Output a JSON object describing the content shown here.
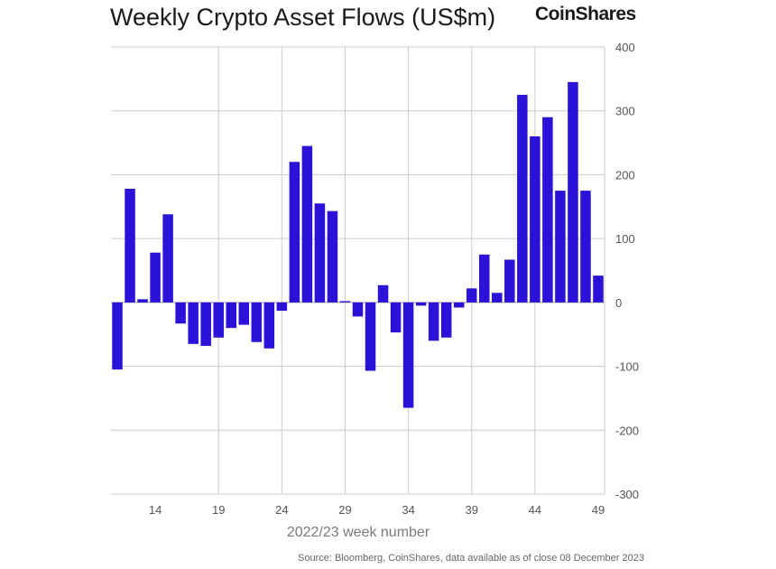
{
  "header": {
    "title": "Weekly Crypto Asset Flows (US$m)",
    "brand": "CoinShares"
  },
  "footer": {
    "source": "Source: Bloomberg, CoinShares, data available as of close 08 December 2023"
  },
  "colors": {
    "bar": "#2a12d8",
    "grid": "#cccccc",
    "zero_line": "#999999",
    "tick_text": "#555555"
  },
  "chart_data": {
    "type": "bar",
    "title": "Weekly Crypto Asset Flows (US$m)",
    "xlabel": "2022/23 week number",
    "ylabel": "US$m",
    "ylim": [
      -300,
      400
    ],
    "yticks": [
      400,
      300,
      200,
      100,
      0,
      -100,
      -200,
      -300
    ],
    "xtick_labels": [
      14,
      19,
      24,
      29,
      34,
      39,
      44,
      49
    ],
    "categories": [
      11,
      12,
      13,
      14,
      15,
      16,
      17,
      18,
      19,
      20,
      21,
      22,
      23,
      24,
      25,
      26,
      27,
      28,
      29,
      30,
      31,
      32,
      33,
      34,
      35,
      36,
      37,
      38,
      39,
      40,
      41,
      42,
      43,
      44,
      45,
      46,
      47,
      48,
      49
    ],
    "values": [
      -105,
      178,
      5,
      78,
      138,
      -33,
      -65,
      -68,
      -55,
      -40,
      -35,
      -62,
      -72,
      -13,
      220,
      245,
      155,
      143,
      2,
      -22,
      -107,
      27,
      -47,
      -165,
      -5,
      -60,
      -55,
      -8,
      22,
      75,
      15,
      67,
      325,
      260,
      290,
      175,
      345,
      175,
      42
    ],
    "grid": true,
    "y_axis_position": "right"
  }
}
